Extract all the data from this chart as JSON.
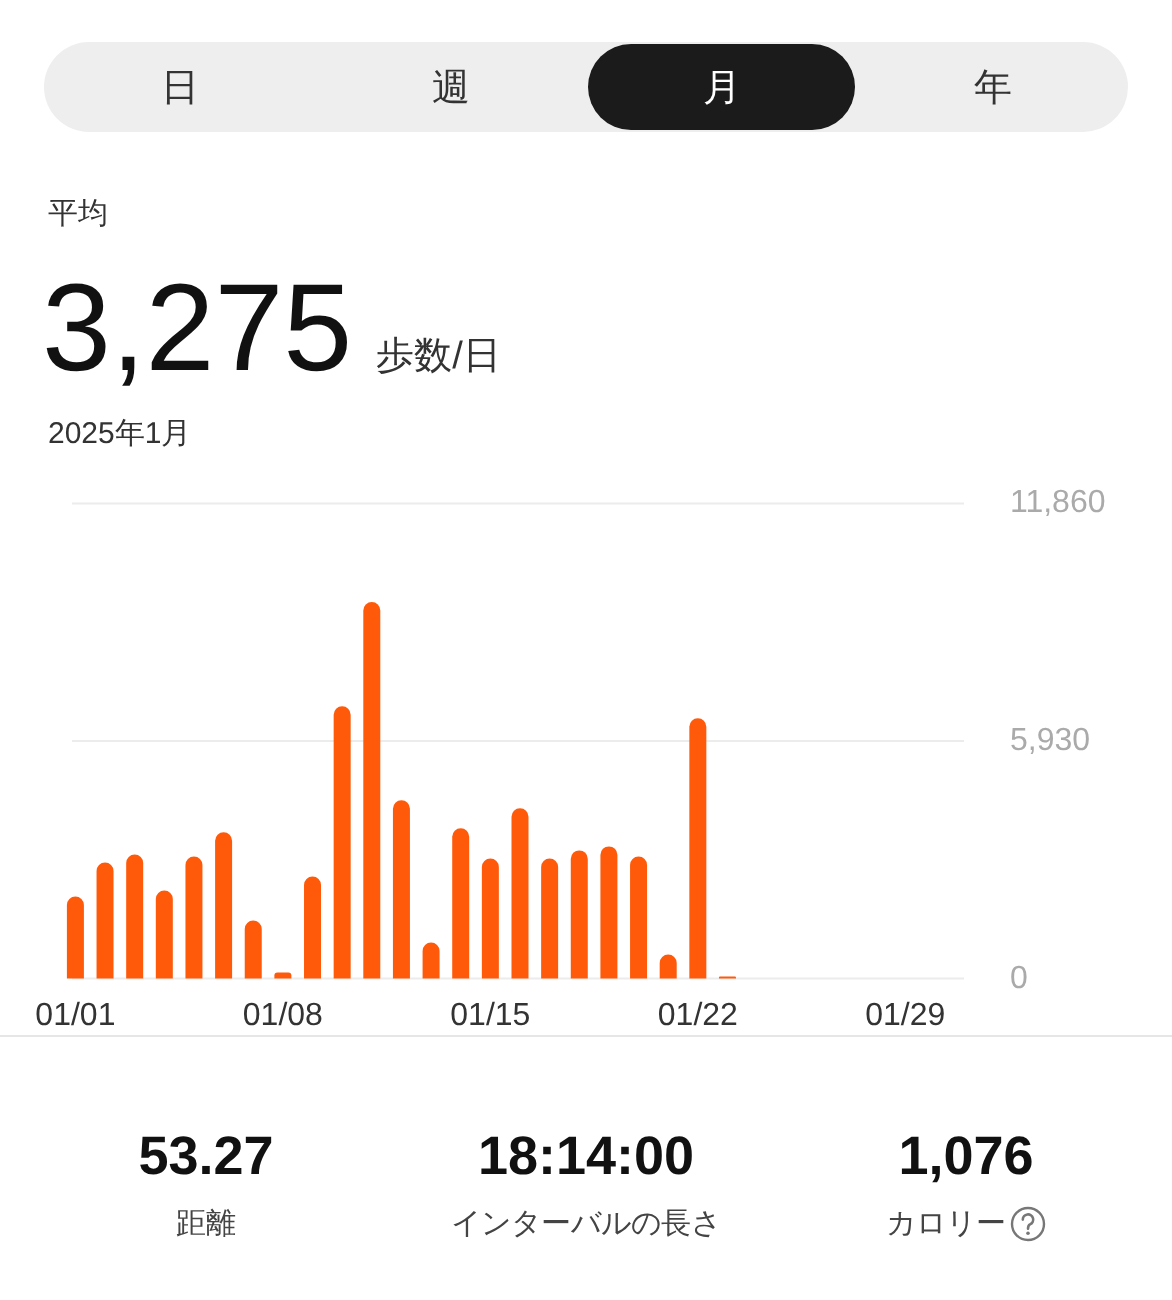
{
  "chart_data": [
    {
      "type": "other",
      "annotations": [
        "日",
        "週",
        "月",
        "年"
      ]
    },
    {
      "type": "bar",
      "title": "3,275",
      "subtitle": "2025年1月",
      "annotations": [
        "平均",
        "歩数/日"
      ],
      "categories": [
        "01/01",
        null,
        null,
        null,
        null,
        null,
        null,
        "01/08",
        null,
        null,
        null,
        null,
        null,
        null,
        "01/15",
        null,
        null,
        null,
        null,
        null,
        null,
        "01/22",
        null,
        null,
        null,
        null,
        null,
        null,
        "01/29",
        null,
        null
      ],
      "values": [
        2050,
        2900,
        3100,
        2200,
        3050,
        3650,
        1450,
        150,
        2550,
        6800,
        9400,
        4450,
        900,
        3750,
        3000,
        4250,
        3000,
        3200,
        3300,
        3050,
        600,
        6500,
        50,
        null,
        null,
        null,
        null,
        null,
        null,
        null,
        null
      ],
      "color": "#ff5a0a",
      "ylim": [
        0,
        11860
      ],
      "yticks": [
        0,
        {
          "value": 5930,
          "label": "5,930"
        },
        {
          "value": 11860,
          "label": "11,860"
        }
      ],
      "grid": "y"
    },
    {
      "type": "other",
      "annotations": [
        "53.27",
        "距離",
        "18:14:00",
        "インターバルの長さ",
        "1,076",
        "カロリー"
      ]
    }
  ]
}
